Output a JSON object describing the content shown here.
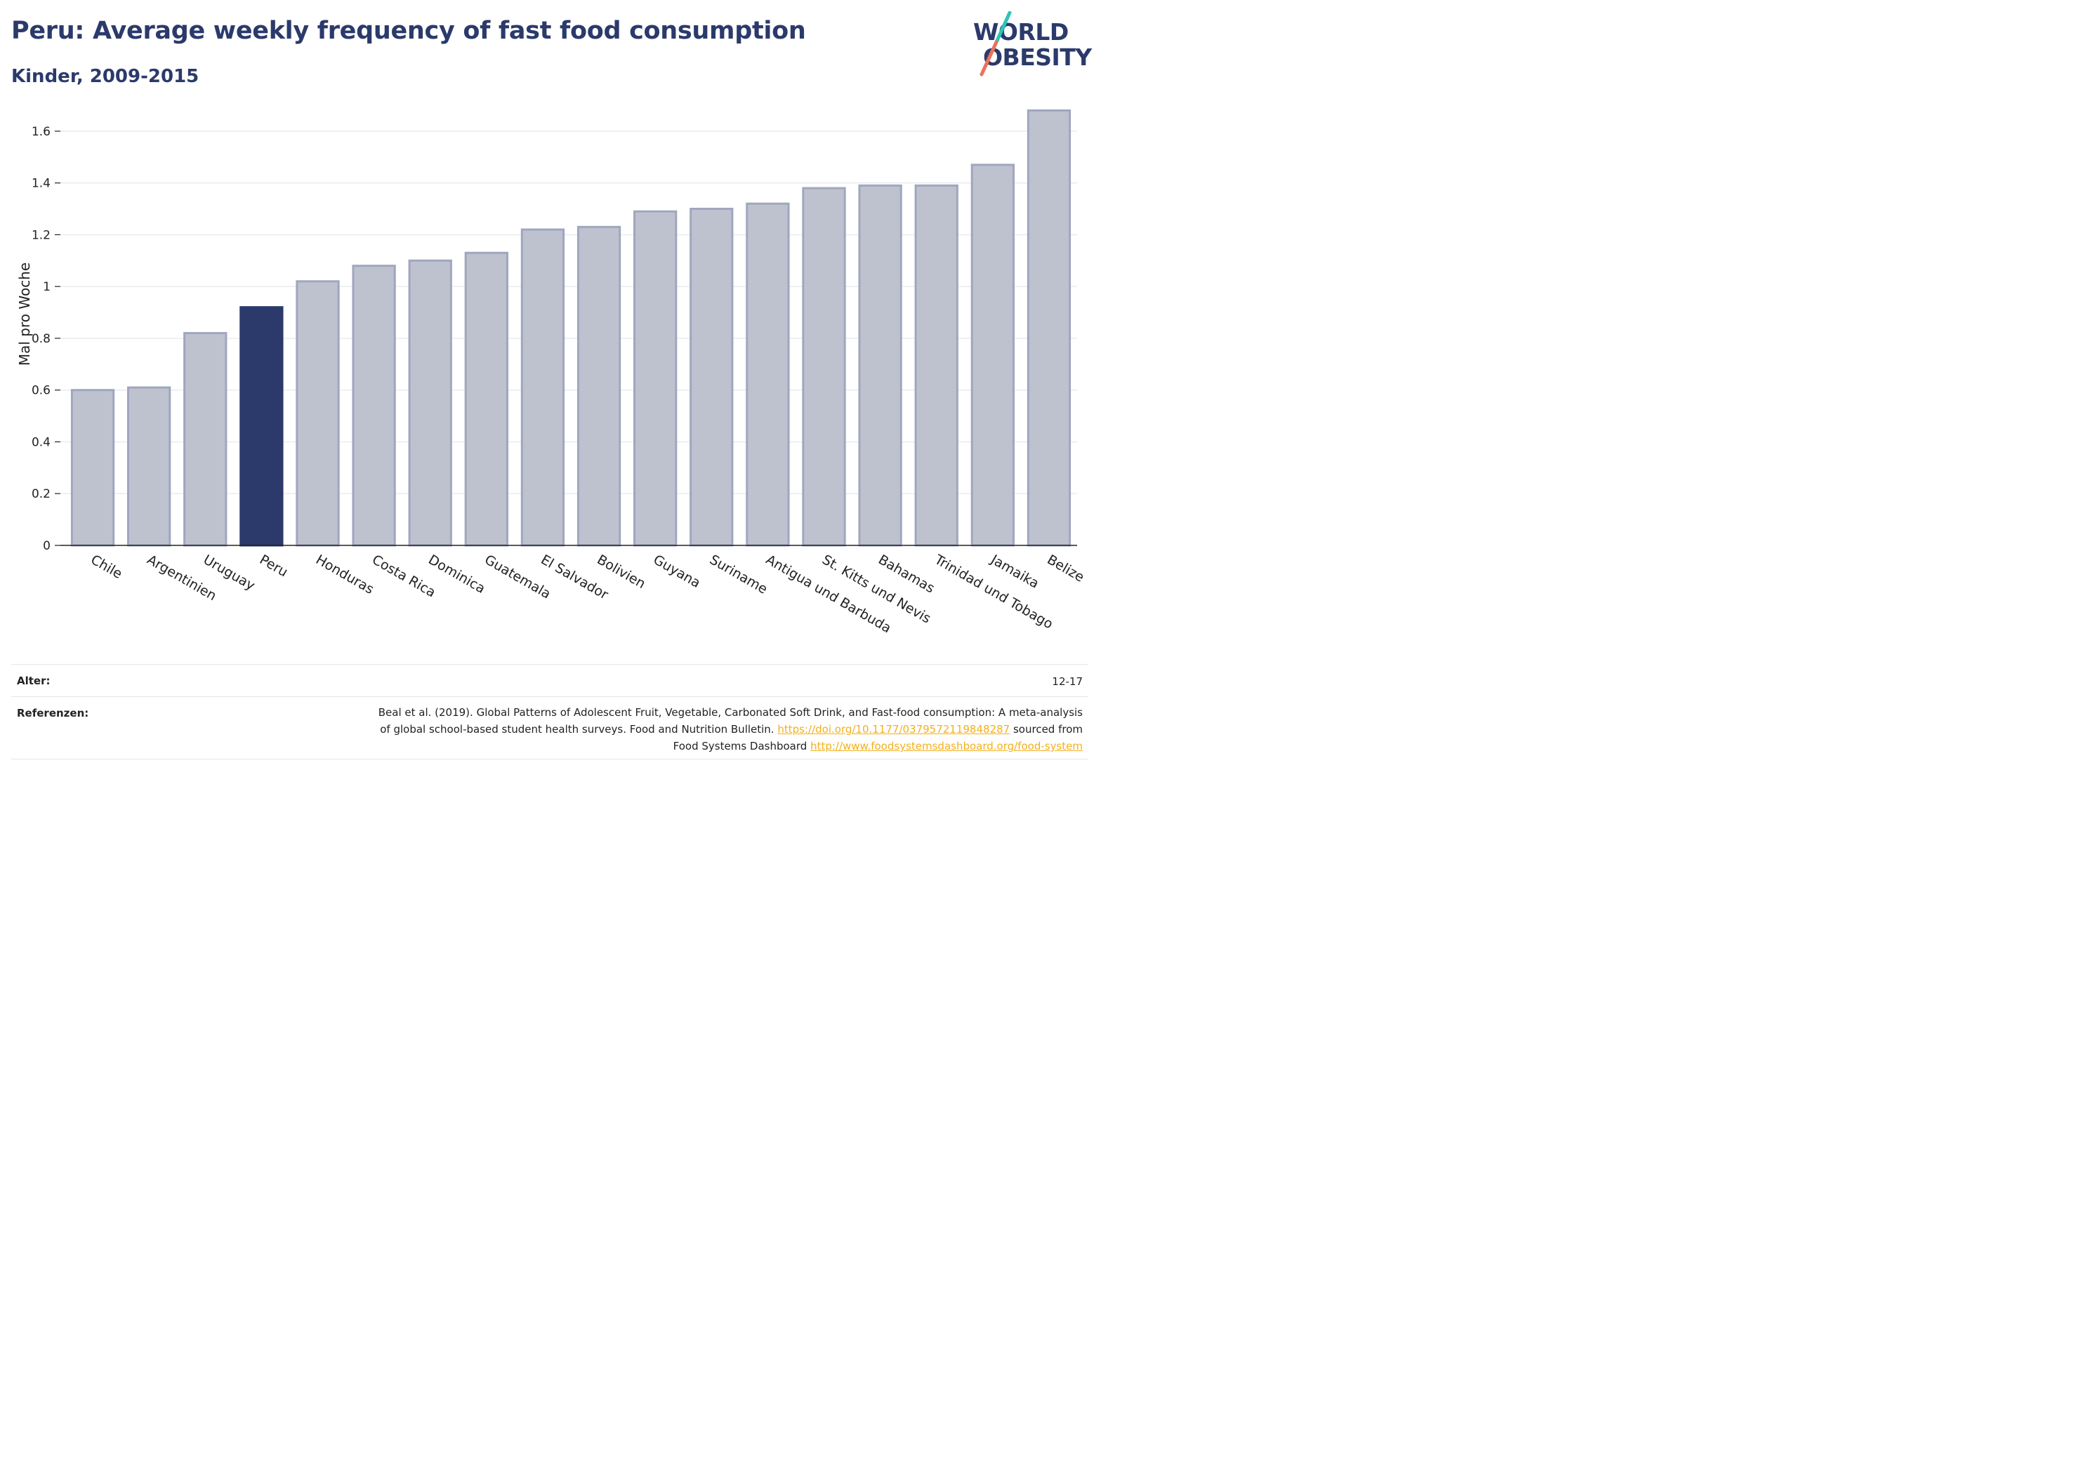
{
  "header": {
    "title": "Peru: Average weekly frequency of fast food consumption",
    "subtitle": "Kinder, 2009-2015"
  },
  "logo": {
    "line1": "WORLD",
    "line2": "OBESITY",
    "text_color": "#2b3a6b",
    "slash_colors": [
      "#2ec4b6",
      "#e8735c"
    ]
  },
  "colors": {
    "highlight_bar": "#2b3a6b",
    "other_bar_fill": "#bec2cf",
    "other_bar_stroke": "#a0a6bd",
    "footer_link": "#f2b01e"
  },
  "chart_data": {
    "type": "bar",
    "title": "Peru: Average weekly frequency of fast food consumption",
    "subtitle": "Kinder, 2009-2015",
    "xlabel": "",
    "ylabel": "Mal pro Woche",
    "ylim": [
      0,
      1.7
    ],
    "yticks": [
      0,
      0.2,
      0.4,
      0.6,
      0.8,
      1,
      1.2,
      1.4,
      1.6
    ],
    "ytick_labels": [
      "0",
      "0.2",
      "0.4",
      "0.6",
      "0.8",
      "1",
      "1.2",
      "1.4",
      "1.6"
    ],
    "grid": true,
    "highlight": "Peru",
    "categories": [
      "Chile",
      "Argentinien",
      "Uruguay",
      "Peru",
      "Honduras",
      "Costa Rica",
      "Dominica",
      "Guatemala",
      "El Salvador",
      "Bolivien",
      "Guyana",
      "Suriname",
      "Antigua und Barbuda",
      "St. Kitts und Nevis",
      "Bahamas",
      "Trinidad und Tobago",
      "Jamaika",
      "Belize"
    ],
    "values": [
      0.6,
      0.61,
      0.82,
      0.92,
      1.02,
      1.08,
      1.1,
      1.13,
      1.22,
      1.23,
      1.29,
      1.3,
      1.32,
      1.38,
      1.39,
      1.39,
      1.47,
      1.68
    ]
  },
  "footer": {
    "age_label": "Alter:",
    "age_value": "12-17",
    "ref_label": "Referenzen:",
    "ref_line1": "Beal et al. (2019). Global Patterns of Adolescent Fruit, Vegetable, Carbonated Soft Drink, and Fast-food consumption: A meta-analysis",
    "ref_line2_text": "of global school-based student health surveys. Food and Nutrition Bulletin.",
    "ref_link1": "https://doi.org/10.1177/0379572119848287",
    "ref_line2_suffix": "sourced from",
    "ref_line3_text": "Food Systems Dashboard",
    "ref_link2": "http://www.foodsystemsdashboard.org/food-system"
  }
}
